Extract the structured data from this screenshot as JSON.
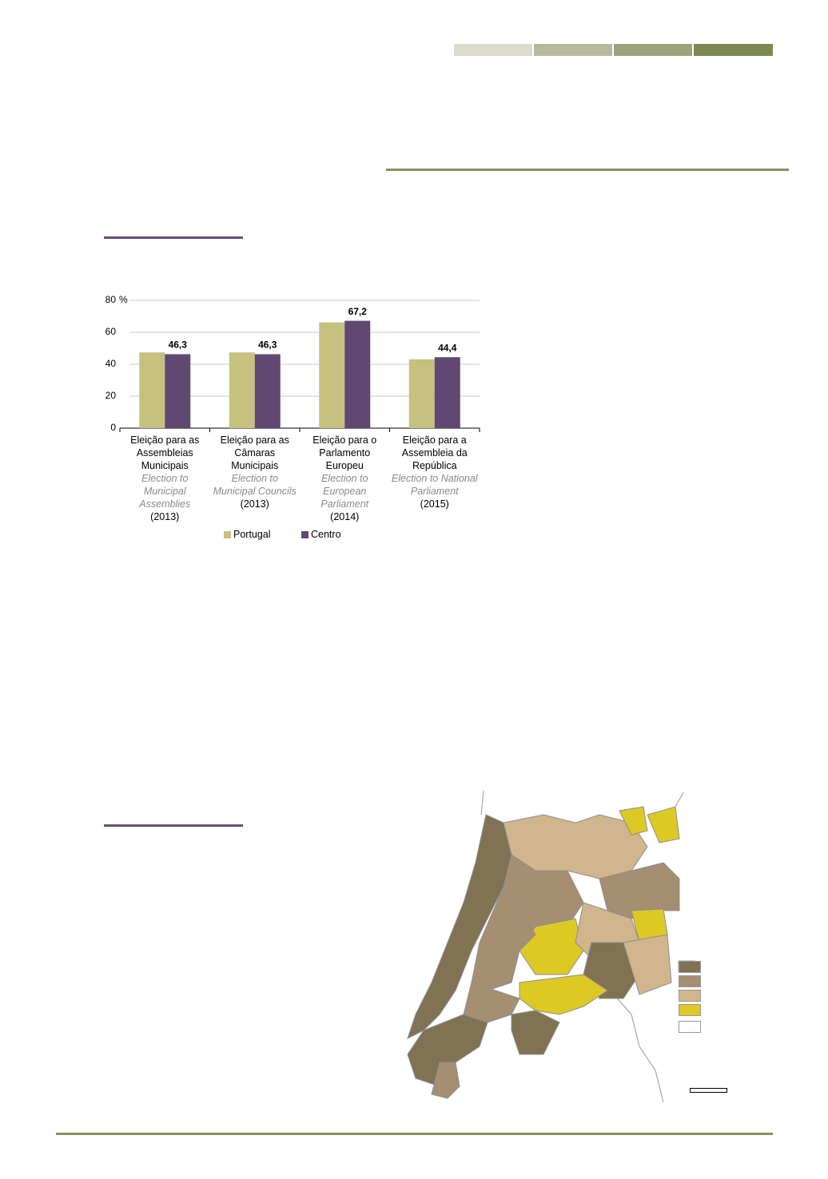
{
  "chart_data": {
    "type": "bar",
    "categories": [
      "Eleição para as Assembleias Municipais",
      "Eleição para as Câmaras Municipais",
      "Eleição para o Parlamento Europeu",
      "Eleição para a Assembleia da República"
    ],
    "category_translations": [
      "Election to Municipal Assemblies",
      "Election to Municipal Councils",
      "Election to European Parliament",
      "Election to National Parliament"
    ],
    "category_years": [
      "(2013)",
      "(2013)",
      "(2014)",
      "(2015)"
    ],
    "series": [
      {
        "name": "Portugal",
        "color": "#c5c17f",
        "values": [
          47.4,
          47.4,
          66.2,
          43.1
        ]
      },
      {
        "name": "Centro",
        "color": "#614873",
        "values": [
          46.3,
          46.3,
          67.2,
          44.4
        ],
        "value_labels": [
          "46,3",
          "46,3",
          "67,2",
          "44,4"
        ]
      }
    ],
    "unit": "%",
    "ylim": [
      0,
      80
    ],
    "yticks": [
      0,
      20,
      40,
      60,
      80
    ],
    "grid": true
  }
}
